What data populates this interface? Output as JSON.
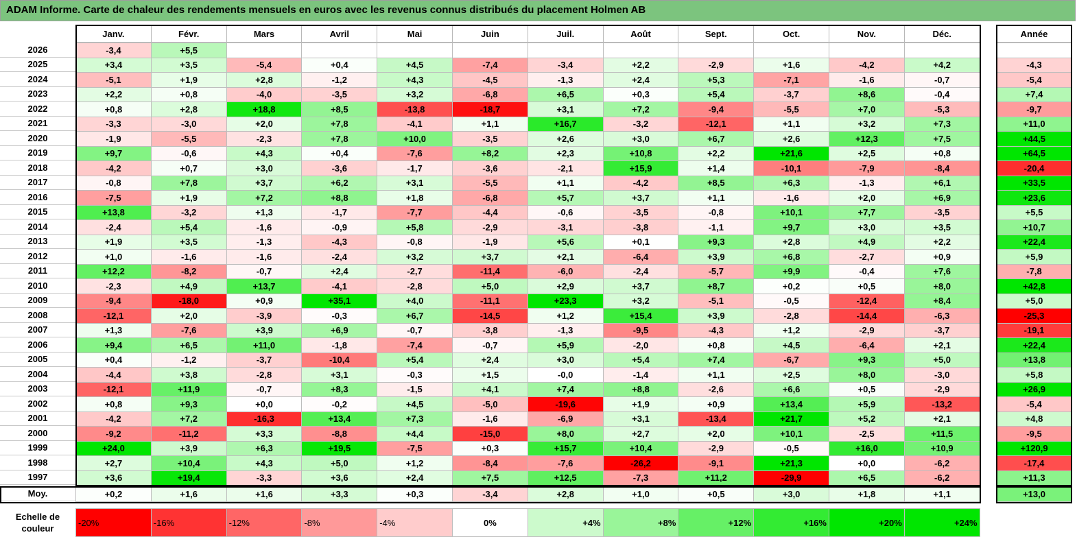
{
  "title": "ADAM Informe. Carte de chaleur des rendements mensuels en euros avec les revenus connus distribués du placement Holmen AB",
  "chart_data": {
    "type": "heatmap",
    "columns": [
      "Janv.",
      "Févr.",
      "Mars",
      "Avril",
      "Mai",
      "Juin",
      "Juil.",
      "Août",
      "Sept.",
      "Oct.",
      "Nov.",
      "Déc."
    ],
    "annual_header": "Année",
    "rows": [
      {
        "label": "2026",
        "values": [
          "-3,4",
          "+5,5",
          "",
          "",
          "",
          "",
          "",
          "",
          "",
          "",
          "",
          ""
        ],
        "annual": ""
      },
      {
        "label": "2025",
        "values": [
          "+3,4",
          "+3,5",
          "-5,4",
          "+0,4",
          "+4,5",
          "-7,4",
          "-3,4",
          "+2,2",
          "-2,9",
          "+1,6",
          "-4,2",
          "+4,2"
        ],
        "annual": "-4,3"
      },
      {
        "label": "2024",
        "values": [
          "-5,1",
          "+1,9",
          "+2,8",
          "-1,2",
          "+4,3",
          "-4,5",
          "-1,3",
          "+2,4",
          "+5,3",
          "-7,1",
          "-1,6",
          "-0,7"
        ],
        "annual": "-5,4"
      },
      {
        "label": "2023",
        "values": [
          "+2,2",
          "+0,8",
          "-4,0",
          "-3,5",
          "+3,2",
          "-6,8",
          "+6,5",
          "+0,3",
          "+5,4",
          "-3,7",
          "+8,6",
          "-0,4"
        ],
        "annual": "+7,4"
      },
      {
        "label": "2022",
        "values": [
          "+0,8",
          "+2,8",
          "+18,8",
          "+8,5",
          "-13,8",
          "-18,7",
          "+3,1",
          "+7,2",
          "-9,4",
          "-5,5",
          "+7,0",
          "-5,3"
        ],
        "annual": "-9,7"
      },
      {
        "label": "2021",
        "values": [
          "-3,3",
          "-3,0",
          "+2,0",
          "+7,8",
          "-4,1",
          "+1,1",
          "+16,7",
          "-3,2",
          "-12,1",
          "+1,1",
          "+3,2",
          "+7,3"
        ],
        "annual": "+11,0"
      },
      {
        "label": "2020",
        "values": [
          "-1,9",
          "-5,5",
          "-2,3",
          "+7,8",
          "+10,0",
          "-3,5",
          "+2,6",
          "+3,0",
          "+6,7",
          "+2,6",
          "+12,3",
          "+7,5"
        ],
        "annual": "+44,5"
      },
      {
        "label": "2019",
        "values": [
          "+9,7",
          "-0,6",
          "+4,3",
          "+0,4",
          "-7,6",
          "+8,2",
          "+2,3",
          "+10,8",
          "+2,2",
          "+21,6",
          "+2,5",
          "+0,8"
        ],
        "annual": "+64,5"
      },
      {
        "label": "2018",
        "values": [
          "-4,2",
          "+0,7",
          "+3,0",
          "-3,6",
          "-1,7",
          "-3,6",
          "-2,1",
          "+15,9",
          "+1,4",
          "-10,1",
          "-7,9",
          "-8,4"
        ],
        "annual": "-20,4"
      },
      {
        "label": "2017",
        "values": [
          "-0,8",
          "+7,8",
          "+3,7",
          "+6,2",
          "+3,1",
          "-5,5",
          "+1,1",
          "-4,2",
          "+8,5",
          "+6,3",
          "-1,3",
          "+6,1"
        ],
        "annual": "+33,5"
      },
      {
        "label": "2016",
        "values": [
          "-7,5",
          "+1,9",
          "+7,2",
          "+8,8",
          "+1,8",
          "-6,8",
          "+5,7",
          "+3,7",
          "+1,1",
          "-1,6",
          "+2,0",
          "+6,9"
        ],
        "annual": "+23,6"
      },
      {
        "label": "2015",
        "values": [
          "+13,8",
          "-3,2",
          "+1,3",
          "-1,7",
          "-7,7",
          "-4,4",
          "-0,6",
          "-3,5",
          "-0,8",
          "+10,1",
          "+7,7",
          "-3,5"
        ],
        "annual": "+5,5"
      },
      {
        "label": "2014",
        "values": [
          "-2,4",
          "+5,4",
          "-1,6",
          "-0,9",
          "+5,8",
          "-2,9",
          "-3,1",
          "-3,8",
          "-1,1",
          "+9,7",
          "+3,0",
          "+3,5"
        ],
        "annual": "+10,7"
      },
      {
        "label": "2013",
        "values": [
          "+1,9",
          "+3,5",
          "-1,3",
          "-4,3",
          "-0,8",
          "-1,9",
          "+5,6",
          "+0,1",
          "+9,3",
          "+2,8",
          "+4,9",
          "+2,2"
        ],
        "annual": "+22,4"
      },
      {
        "label": "2012",
        "values": [
          "+1,0",
          "-1,6",
          "-1,6",
          "-2,4",
          "+3,2",
          "+3,7",
          "+2,1",
          "-6,4",
          "+3,9",
          "+6,8",
          "-2,7",
          "+0,9"
        ],
        "annual": "+5,9"
      },
      {
        "label": "2011",
        "values": [
          "+12,2",
          "-8,2",
          "-0,7",
          "+2,4",
          "-2,7",
          "-11,4",
          "-6,0",
          "-2,4",
          "-5,7",
          "+9,9",
          "-0,4",
          "+7,6"
        ],
        "annual": "-7,8"
      },
      {
        "label": "2010",
        "values": [
          "-2,3",
          "+4,9",
          "+13,7",
          "-4,1",
          "-2,8",
          "+5,0",
          "+2,9",
          "+3,7",
          "+8,7",
          "+0,2",
          "+0,5",
          "+8,0"
        ],
        "annual": "+42,8"
      },
      {
        "label": "2009",
        "values": [
          "-9,4",
          "-18,0",
          "+0,9",
          "+35,1",
          "+4,0",
          "-11,1",
          "+23,3",
          "+3,2",
          "-5,1",
          "-0,5",
          "-12,4",
          "+8,4"
        ],
        "annual": "+5,0"
      },
      {
        "label": "2008",
        "values": [
          "-12,1",
          "+2,0",
          "-3,9",
          "-0,3",
          "+6,7",
          "-14,5",
          "+1,2",
          "+15,4",
          "+3,9",
          "-2,8",
          "-14,4",
          "-6,3"
        ],
        "annual": "-25,3"
      },
      {
        "label": "2007",
        "values": [
          "+1,3",
          "-7,6",
          "+3,9",
          "+6,9",
          "-0,7",
          "-3,8",
          "-1,3",
          "-9,5",
          "-4,3",
          "+1,2",
          "-2,9",
          "-3,7"
        ],
        "annual": "-19,1"
      },
      {
        "label": "2006",
        "values": [
          "+9,4",
          "+6,5",
          "+11,0",
          "-1,8",
          "-7,4",
          "-0,7",
          "+5,9",
          "-2,0",
          "+0,8",
          "+4,5",
          "-6,4",
          "+2,1"
        ],
        "annual": "+22,4"
      },
      {
        "label": "2005",
        "values": [
          "+0,4",
          "-1,2",
          "-3,7",
          "-10,4",
          "+5,4",
          "+2,4",
          "+3,0",
          "+5,4",
          "+7,4",
          "-6,7",
          "+9,3",
          "+5,0"
        ],
        "annual": "+13,8"
      },
      {
        "label": "2004",
        "values": [
          "-4,4",
          "+3,8",
          "-2,8",
          "+3,1",
          "-0,3",
          "+1,5",
          "-0,0",
          "-1,4",
          "+1,1",
          "+2,5",
          "+8,0",
          "-3,0"
        ],
        "annual": "+5,8"
      },
      {
        "label": "2003",
        "values": [
          "-12,1",
          "+11,9",
          "-0,7",
          "+8,3",
          "-1,5",
          "+4,1",
          "+7,4",
          "+8,8",
          "-2,6",
          "+6,6",
          "+0,5",
          "-2,9"
        ],
        "annual": "+26,9"
      },
      {
        "label": "2002",
        "values": [
          "+0,8",
          "+9,3",
          "+0,0",
          "-0,2",
          "+4,5",
          "-5,0",
          "-19,6",
          "+1,9",
          "+0,9",
          "+13,4",
          "+5,9",
          "-13,2"
        ],
        "annual": "-5,4"
      },
      {
        "label": "2001",
        "values": [
          "-4,2",
          "+7,2",
          "-16,3",
          "+13,4",
          "+7,3",
          "-1,6",
          "-6,9",
          "+3,1",
          "-13,4",
          "+21,7",
          "+5,2",
          "+2,1"
        ],
        "annual": "+4,8"
      },
      {
        "label": "2000",
        "values": [
          "-9,2",
          "-11,2",
          "+3,3",
          "-8,8",
          "+4,4",
          "-15,0",
          "+8,0",
          "+2,7",
          "+2,0",
          "+10,1",
          "-2,5",
          "+11,5"
        ],
        "annual": "-9,5"
      },
      {
        "label": "1999",
        "values": [
          "+24,0",
          "+3,9",
          "+6,3",
          "+19,5",
          "-7,5",
          "+0,3",
          "+15,7",
          "+10,4",
          "-2,9",
          "-0,5",
          "+16,0",
          "+10,9"
        ],
        "annual": "+120,9"
      },
      {
        "label": "1998",
        "values": [
          "+2,7",
          "+10,4",
          "+4,3",
          "+5,0",
          "+1,2",
          "-8,4",
          "-7,6",
          "-26,2",
          "-9,1",
          "+21,3",
          "+0,0",
          "-6,2"
        ],
        "annual": "-17,4"
      },
      {
        "label": "1997",
        "values": [
          "+3,6",
          "+19,4",
          "-3,3",
          "+3,6",
          "+2,4",
          "+7,5",
          "+12,5",
          "-7,3",
          "+11,2",
          "-29,9",
          "+6,5",
          "-6,2"
        ],
        "annual": "+11,3"
      }
    ],
    "average_row": {
      "label": "Moy.",
      "values": [
        "+0,2",
        "+1,6",
        "+1,6",
        "+3,3",
        "+0,3",
        "-3,4",
        "+2,8",
        "+1,0",
        "+0,5",
        "+3,0",
        "+1,8",
        "+1,1"
      ],
      "annual": "+13,0"
    },
    "color_scale": {
      "label_line1": "Echelle de",
      "label_line2": "couleur",
      "steps": [
        "-20%",
        "-16%",
        "-12%",
        "-8%",
        "-4%",
        "0%",
        "+4%",
        "+8%",
        "+12%",
        "+16%",
        "+20%",
        "+24%"
      ],
      "negative_color": "#ff0000",
      "neutral_color": "#ffffff",
      "positive_color": "#00e600"
    }
  }
}
